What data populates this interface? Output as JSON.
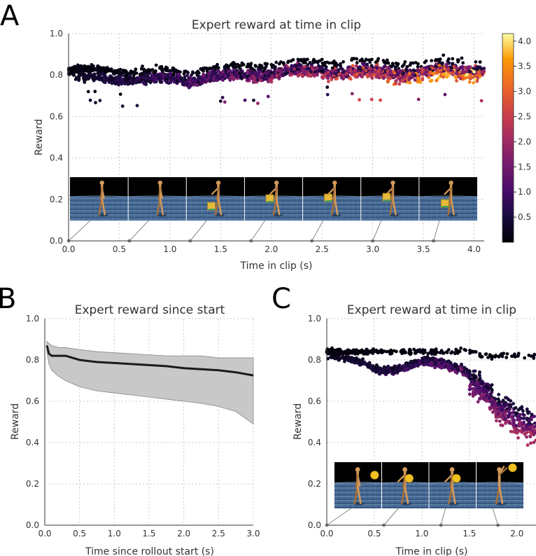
{
  "panels": {
    "A": {
      "letter": "A",
      "colorbar": {
        "ticks": [
          "0.5",
          "1.0",
          "1.5",
          "2.0",
          "2.5",
          "3.0",
          "3.5",
          "4.0"
        ],
        "range": [
          0,
          4.15
        ]
      },
      "thumbnails": {
        "count": 7,
        "times": [
          0.0,
          0.6,
          1.2,
          1.8,
          2.4,
          3.0,
          3.6
        ],
        "object": "box"
      }
    },
    "B": {
      "letter": "B"
    },
    "C": {
      "letter": "C",
      "thumbnails": {
        "count": 4,
        "times": [
          0.0,
          0.6,
          1.2,
          1.8
        ],
        "object": "ball"
      }
    }
  },
  "chart_data": [
    {
      "id": "A",
      "type": "scatter",
      "title": "Expert reward at time in clip",
      "xlabel": "Time in clip (s)",
      "ylabel": "Reward",
      "xlim": [
        0,
        4.1
      ],
      "ylim": [
        0,
        1.0
      ],
      "xticks": [
        "0.0",
        "0.5",
        "1.0",
        "1.5",
        "2.0",
        "2.5",
        "3.0",
        "3.5",
        "4.0"
      ],
      "xtick_values": [
        0,
        0.5,
        1.0,
        1.5,
        2.0,
        2.5,
        3.0,
        3.5,
        4.0
      ],
      "yticks": [
        "0.0",
        "0.2",
        "0.4",
        "0.6",
        "0.8",
        "1.0"
      ],
      "ytick_values": [
        0,
        0.2,
        0.4,
        0.6,
        0.8,
        1.0
      ],
      "grid": true,
      "colormap": "inferno",
      "color_by": "time since rollout start (s)",
      "series": [
        {
          "x": [
            0.0,
            0.4,
            0.8,
            1.2,
            1.6,
            2.0,
            2.4,
            2.8,
            3.2,
            3.6,
            4.0,
            4.1
          ],
          "y": [
            0.78,
            0.79,
            0.78,
            0.79,
            0.8,
            0.82,
            0.83,
            0.83,
            0.82,
            0.83,
            0.84,
            0.84
          ]
        }
      ]
    },
    {
      "id": "B",
      "type": "line",
      "title": "Expert reward since start",
      "xlabel": "Time since rollout start (s)",
      "ylabel": "Reward",
      "xlim": [
        0,
        3.0
      ],
      "ylim": [
        0,
        1.0
      ],
      "xticks": [
        "0.0",
        "0.5",
        "1.0",
        "1.5",
        "2.0",
        "2.5",
        "3.0"
      ],
      "xtick_values": [
        0,
        0.5,
        1.0,
        1.5,
        2.0,
        2.5,
        3.0
      ],
      "yticks": [
        "0.0",
        "0.2",
        "0.4",
        "0.6",
        "0.8",
        "1.0"
      ],
      "ytick_values": [
        0,
        0.2,
        0.4,
        0.6,
        0.8,
        1.0
      ],
      "grid": true,
      "x": [
        0.03,
        0.06,
        0.1,
        0.2,
        0.3,
        0.5,
        0.75,
        1.0,
        1.25,
        1.5,
        1.75,
        2.0,
        2.25,
        2.5,
        2.75,
        3.0
      ],
      "mean": [
        0.87,
        0.83,
        0.82,
        0.82,
        0.82,
        0.8,
        0.79,
        0.785,
        0.78,
        0.775,
        0.77,
        0.76,
        0.755,
        0.75,
        0.74,
        0.725
      ],
      "upper": [
        0.89,
        0.88,
        0.87,
        0.86,
        0.86,
        0.85,
        0.84,
        0.835,
        0.83,
        0.825,
        0.82,
        0.82,
        0.82,
        0.81,
        0.81,
        0.81
      ],
      "lower": [
        0.84,
        0.78,
        0.75,
        0.72,
        0.7,
        0.67,
        0.65,
        0.64,
        0.63,
        0.62,
        0.61,
        0.6,
        0.59,
        0.575,
        0.55,
        0.49
      ]
    },
    {
      "id": "C",
      "type": "scatter",
      "title": "Expert reward at time in clip",
      "xlabel": "Time in clip (s)",
      "ylabel": "Reward",
      "xlim": [
        0,
        2.2
      ],
      "ylim": [
        0,
        1.0
      ],
      "xticks": [
        "0.0",
        "0.5",
        "1.0",
        "1.5",
        "2.0"
      ],
      "xtick_values": [
        0,
        0.5,
        1.0,
        1.5,
        2.0
      ],
      "yticks": [
        "0.0",
        "0.2",
        "0.4",
        "0.6",
        "0.8",
        "1.0"
      ],
      "ytick_values": [
        0,
        0.2,
        0.4,
        0.6,
        0.8,
        1.0
      ],
      "grid": true,
      "colormap": "inferno",
      "color_by": "time since rollout start (s)",
      "series": [
        {
          "x": [
            0.0,
            0.2,
            0.4,
            0.6,
            0.8,
            1.0,
            1.2,
            1.4,
            1.6,
            1.8,
            2.0,
            2.2
          ],
          "y": [
            0.82,
            0.8,
            0.79,
            0.76,
            0.77,
            0.79,
            0.8,
            0.78,
            0.72,
            0.62,
            0.58,
            0.54
          ]
        }
      ]
    }
  ]
}
